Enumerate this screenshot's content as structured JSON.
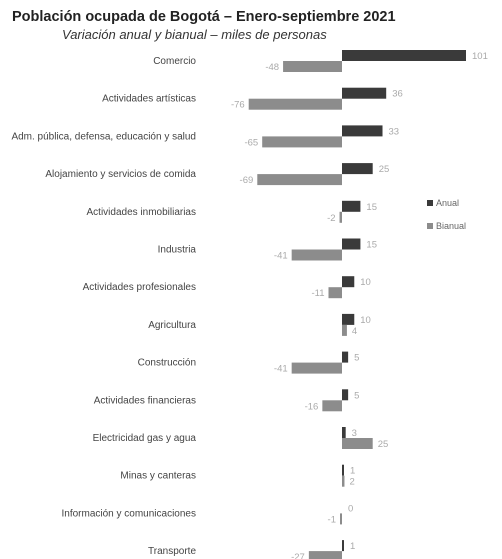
{
  "chart_data": {
    "type": "bar",
    "orientation": "horizontal",
    "title": "Población ocupada de Bogotá – Enero-septiembre 2021",
    "subtitle": "Variación anual y bianual – miles de personas",
    "categories": [
      "Comercio",
      "Actividades artísticas",
      "Adm. pública, defensa, educación y salud",
      "Alojamiento y servicios de comida",
      "Actividades inmobiliarias",
      "Industria",
      "Actividades profesionales",
      "Agricultura",
      "Construcción",
      "Actividades financieras",
      "Electricidad gas y agua",
      "Minas y canteras",
      "Información y comunicaciones",
      "Transporte"
    ],
    "series": [
      {
        "name": "Anual",
        "values": [
          101,
          36,
          33,
          25,
          15,
          15,
          10,
          10,
          5,
          5,
          3,
          1,
          0,
          1
        ],
        "color": "#3a3a3a"
      },
      {
        "name": "Bianual",
        "values": [
          -48,
          -76,
          -65,
          -69,
          -2,
          -41,
          -11,
          4,
          -41,
          -16,
          25,
          2,
          -1,
          -27
        ],
        "color": "#8c8c8c"
      }
    ],
    "legend_position": "right",
    "grid": false
  }
}
